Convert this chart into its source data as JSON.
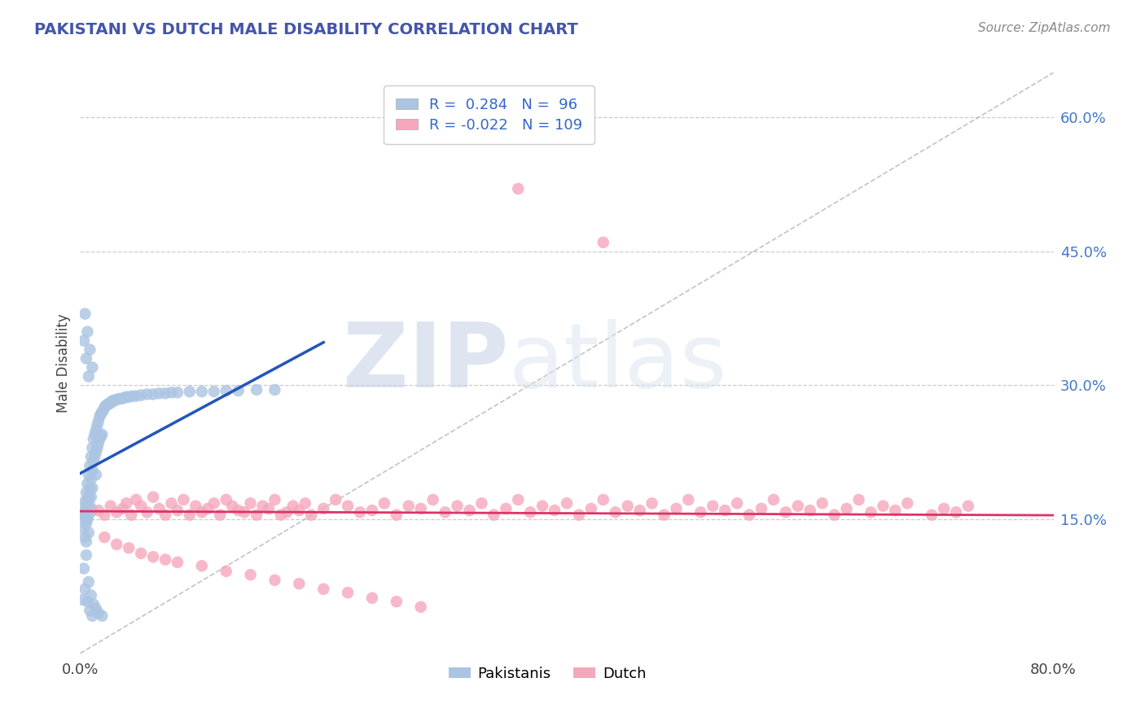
{
  "title": "PAKISTANI VS DUTCH MALE DISABILITY CORRELATION CHART",
  "source_text": "Source: ZipAtlas.com",
  "ylabel": "Male Disability",
  "xlim": [
    0.0,
    0.8
  ],
  "ylim": [
    0.0,
    0.65
  ],
  "y_ticks_right": [
    0.15,
    0.3,
    0.45,
    0.6
  ],
  "y_tick_labels_right": [
    "15.0%",
    "30.0%",
    "45.0%",
    "60.0%"
  ],
  "grid_color": "#cccccc",
  "background_color": "#ffffff",
  "pakistani_color": "#aac4e2",
  "dutch_color": "#f5a8bc",
  "pakistani_line_color": "#2255bb",
  "dutch_line_color": "#dd3366",
  "diag_line_color": "#aaaaaa",
  "R_pakistani": 0.284,
  "N_pakistani": 96,
  "R_dutch": -0.022,
  "N_dutch": 109,
  "pak_x": [
    0.002,
    0.003,
    0.003,
    0.004,
    0.004,
    0.004,
    0.005,
    0.005,
    0.005,
    0.005,
    0.006,
    0.006,
    0.006,
    0.007,
    0.007,
    0.007,
    0.007,
    0.008,
    0.008,
    0.008,
    0.009,
    0.009,
    0.009,
    0.01,
    0.01,
    0.01,
    0.01,
    0.011,
    0.011,
    0.012,
    0.012,
    0.013,
    0.013,
    0.013,
    0.014,
    0.014,
    0.015,
    0.015,
    0.016,
    0.016,
    0.017,
    0.017,
    0.018,
    0.018,
    0.019,
    0.02,
    0.021,
    0.022,
    0.023,
    0.024,
    0.025,
    0.026,
    0.027,
    0.028,
    0.03,
    0.032,
    0.034,
    0.036,
    0.038,
    0.04,
    0.043,
    0.046,
    0.05,
    0.055,
    0.06,
    0.065,
    0.07,
    0.075,
    0.08,
    0.09,
    0.1,
    0.11,
    0.12,
    0.13,
    0.145,
    0.16,
    0.003,
    0.005,
    0.007,
    0.009,
    0.011,
    0.013,
    0.015,
    0.018,
    0.002,
    0.004,
    0.006,
    0.008,
    0.01,
    0.003,
    0.005,
    0.007,
    0.004,
    0.006,
    0.008,
    0.01
  ],
  "pak_y": [
    0.155,
    0.16,
    0.14,
    0.17,
    0.15,
    0.13,
    0.18,
    0.165,
    0.145,
    0.125,
    0.19,
    0.17,
    0.15,
    0.2,
    0.175,
    0.155,
    0.135,
    0.21,
    0.185,
    0.165,
    0.22,
    0.195,
    0.175,
    0.23,
    0.205,
    0.185,
    0.16,
    0.24,
    0.215,
    0.245,
    0.22,
    0.25,
    0.225,
    0.2,
    0.255,
    0.23,
    0.26,
    0.235,
    0.265,
    0.24,
    0.268,
    0.243,
    0.27,
    0.245,
    0.272,
    0.275,
    0.277,
    0.278,
    0.279,
    0.28,
    0.28,
    0.282,
    0.283,
    0.283,
    0.284,
    0.285,
    0.285,
    0.286,
    0.287,
    0.287,
    0.288,
    0.288,
    0.289,
    0.29,
    0.29,
    0.291,
    0.291,
    0.292,
    0.292,
    0.293,
    0.293,
    0.293,
    0.294,
    0.294,
    0.295,
    0.295,
    0.095,
    0.11,
    0.08,
    0.065,
    0.055,
    0.05,
    0.045,
    0.042,
    0.06,
    0.072,
    0.058,
    0.048,
    0.042,
    0.35,
    0.33,
    0.31,
    0.38,
    0.36,
    0.34,
    0.32
  ],
  "dutch_x": [
    0.015,
    0.02,
    0.025,
    0.03,
    0.035,
    0.038,
    0.042,
    0.046,
    0.05,
    0.055,
    0.06,
    0.065,
    0.07,
    0.075,
    0.08,
    0.085,
    0.09,
    0.095,
    0.1,
    0.105,
    0.11,
    0.115,
    0.12,
    0.125,
    0.13,
    0.135,
    0.14,
    0.145,
    0.15,
    0.155,
    0.16,
    0.165,
    0.17,
    0.175,
    0.18,
    0.185,
    0.19,
    0.2,
    0.21,
    0.22,
    0.23,
    0.24,
    0.25,
    0.26,
    0.27,
    0.28,
    0.29,
    0.3,
    0.31,
    0.32,
    0.33,
    0.34,
    0.35,
    0.36,
    0.37,
    0.38,
    0.39,
    0.4,
    0.41,
    0.42,
    0.43,
    0.44,
    0.45,
    0.46,
    0.47,
    0.48,
    0.49,
    0.5,
    0.51,
    0.52,
    0.53,
    0.54,
    0.55,
    0.56,
    0.57,
    0.58,
    0.59,
    0.6,
    0.61,
    0.62,
    0.63,
    0.64,
    0.65,
    0.66,
    0.67,
    0.68,
    0.7,
    0.71,
    0.72,
    0.73,
    0.02,
    0.03,
    0.04,
    0.05,
    0.06,
    0.07,
    0.08,
    0.1,
    0.12,
    0.14,
    0.16,
    0.18,
    0.2,
    0.22,
    0.24,
    0.26,
    0.28,
    0.36,
    0.43
  ],
  "dutch_y": [
    0.16,
    0.155,
    0.165,
    0.158,
    0.162,
    0.168,
    0.155,
    0.172,
    0.165,
    0.158,
    0.175,
    0.162,
    0.155,
    0.168,
    0.16,
    0.172,
    0.155,
    0.165,
    0.158,
    0.162,
    0.168,
    0.155,
    0.172,
    0.165,
    0.16,
    0.158,
    0.168,
    0.155,
    0.165,
    0.162,
    0.172,
    0.155,
    0.158,
    0.165,
    0.16,
    0.168,
    0.155,
    0.162,
    0.172,
    0.165,
    0.158,
    0.16,
    0.168,
    0.155,
    0.165,
    0.162,
    0.172,
    0.158,
    0.165,
    0.16,
    0.168,
    0.155,
    0.162,
    0.172,
    0.158,
    0.165,
    0.16,
    0.168,
    0.155,
    0.162,
    0.172,
    0.158,
    0.165,
    0.16,
    0.168,
    0.155,
    0.162,
    0.172,
    0.158,
    0.165,
    0.16,
    0.168,
    0.155,
    0.162,
    0.172,
    0.158,
    0.165,
    0.16,
    0.168,
    0.155,
    0.162,
    0.172,
    0.158,
    0.165,
    0.16,
    0.168,
    0.155,
    0.162,
    0.158,
    0.165,
    0.13,
    0.122,
    0.118,
    0.112,
    0.108,
    0.105,
    0.102,
    0.098,
    0.092,
    0.088,
    0.082,
    0.078,
    0.072,
    0.068,
    0.062,
    0.058,
    0.052,
    0.52,
    0.46
  ]
}
